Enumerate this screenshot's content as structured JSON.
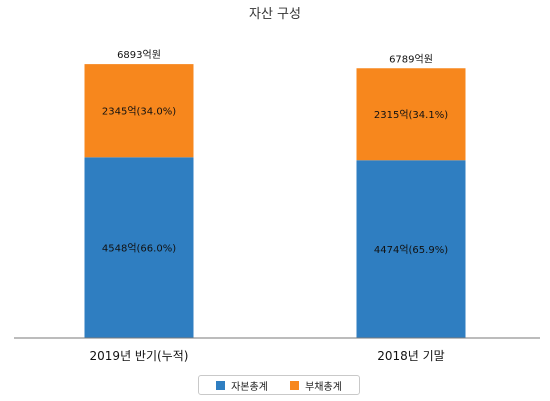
{
  "chart_data": {
    "type": "bar",
    "stacked": true,
    "title": "자산 구성",
    "categories": [
      "2019년 반기(누적)",
      "2018년 기말"
    ],
    "series": [
      {
        "name": "자본총계",
        "color": "#2f7ec1",
        "values": [
          4548,
          4474
        ],
        "labels": [
          "4548억(66.0%)",
          "4474억(65.9%)"
        ]
      },
      {
        "name": "부채총계",
        "color": "#f7871d",
        "values": [
          2345,
          2315
        ],
        "labels": [
          "2345억(34.0%)",
          "2315억(34.1%)"
        ]
      }
    ],
    "totals": [
      6893,
      6789
    ],
    "total_labels": [
      "6893억원",
      "6789억원"
    ],
    "ylim": [
      0,
      7500
    ],
    "grid": false,
    "legend_position": "bottom"
  }
}
